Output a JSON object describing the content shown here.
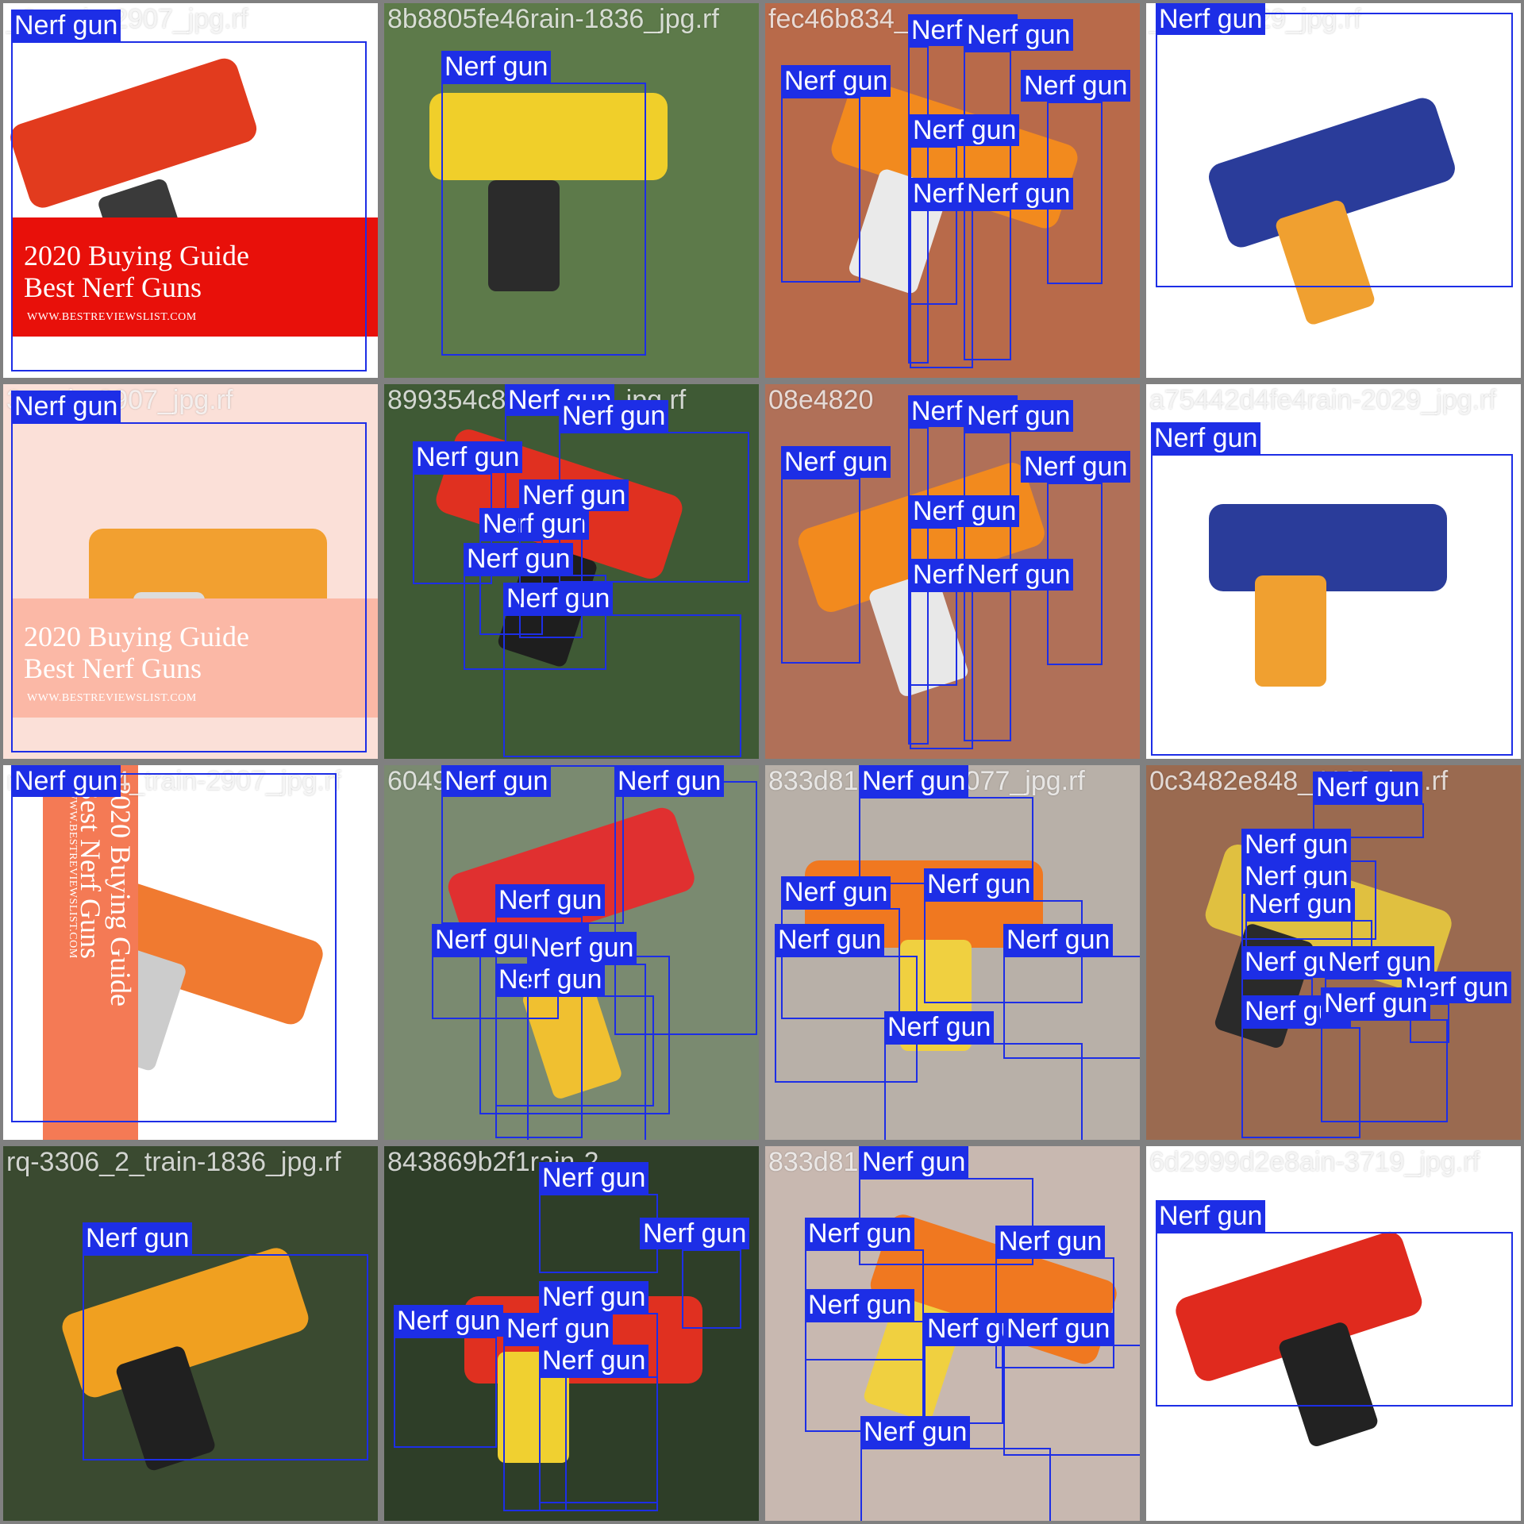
{
  "label": "Nerf gun",
  "colors": {
    "box": "#1d2ee6",
    "bg": "#808080"
  },
  "tiles": [
    {
      "file": "_2_train-2907_jpg.rf",
      "poster": {
        "line1": "2020 Buying Guide",
        "line2": "Best Nerf Guns",
        "url": "WWW.BESTREVIEWSLIST.COM"
      },
      "boxes": 1
    },
    {
      "file": "8b8805fe46rain-1836_jpg.rf",
      "boxes": 1
    },
    {
      "file": "fec46b834_",
      "boxes": 7
    },
    {
      "file": "_train-2029_jpg.rf",
      "boxes": 1
    },
    {
      "file": "3_train-2907_jpg.rf",
      "poster": {
        "line1": "2020 Buying Guide",
        "line2": "Best Nerf Guns",
        "url": "WWW.BESTREVIEWSLIST.COM"
      },
      "boxes": 1
    },
    {
      "file": "899354c8287_684_jpg.rf",
      "boxes": 7
    },
    {
      "file": "08e4820",
      "boxes": 7
    },
    {
      "file": "a75442d4fe4rain-2029_jpg.rf",
      "boxes": 1
    },
    {
      "file": "rq-3286_4_train-2907_jpg.rf",
      "poster": {
        "line1": "2020 Buying Guide",
        "line2": "Best Nerf Guns",
        "url": "WWW.BESTREVIEWSLIST.COM"
      },
      "boxes": 1
    },
    {
      "file": "6049d1d03",
      "boxes": 7
    },
    {
      "file": "833d818_train-4077_jpg.rf",
      "boxes": 7
    },
    {
      "file": "0c3482e848_4103_jpg.rf",
      "boxes": 9
    },
    {
      "file": "rq-3306_2_train-1836_jpg.rf",
      "boxes": 1
    },
    {
      "file": "843869b2f1rain-2",
      "boxes": 7
    },
    {
      "file": "833d818",
      "boxes": 7
    },
    {
      "file": "6d2999d2e8ain-3719_jpg.rf",
      "boxes": 1
    }
  ]
}
